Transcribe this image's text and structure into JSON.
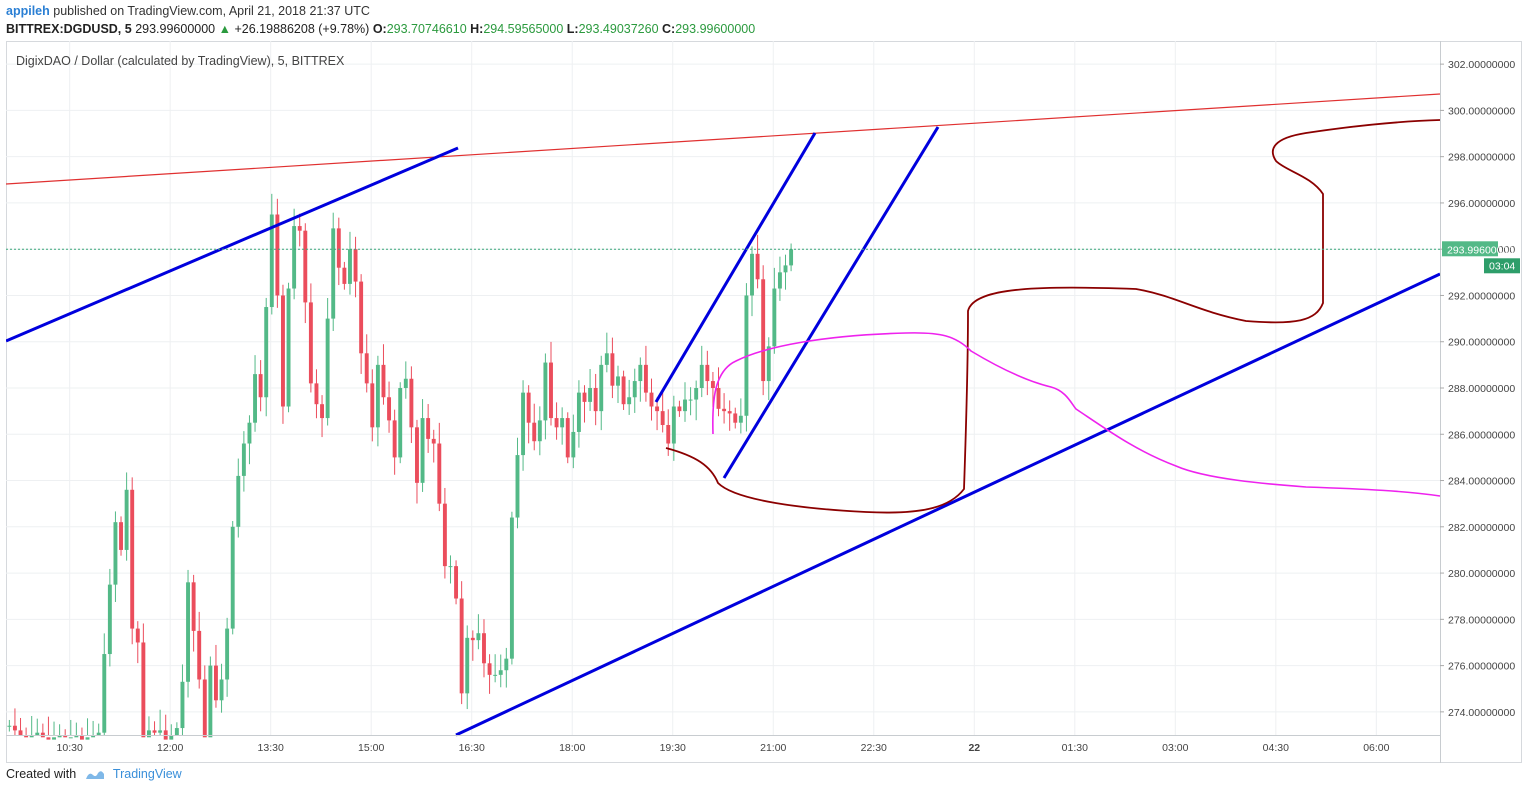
{
  "header": {
    "user": "appileh",
    "published_text": "published on TradingView.com, April 21, 2018 21:37 UTC",
    "symbol": "BITTREX:DGDUSD, 5",
    "last_price": "293.99600000",
    "change_arrow": "▲",
    "change": "+26.19886208 (+9.78%)",
    "o_label": "O:",
    "o_value": "293.70746610",
    "h_label": "H:",
    "h_value": "294.59565000",
    "l_label": "L:",
    "l_value": "293.49037260",
    "c_label": "C:",
    "c_value": "293.99600000"
  },
  "chart_title": "DigixDAO / Dollar (calculated by TradingView), 5, BITTREX",
  "price_badge": "293.99600000",
  "countdown_badge": "03:04",
  "footer": {
    "created_with": "Created with",
    "brand": "TradingView"
  },
  "colors": {
    "up": "#53b987",
    "down": "#eb4d5c",
    "trendline": "#0000dd",
    "resistance": "#e03030",
    "projection_dark": "#8b0000",
    "projection_magenta": "#ee22ee",
    "last_price_line": "#3aa77a",
    "badge_price": "#53b987",
    "badge_time": "#2e9e6a"
  },
  "chart_data": {
    "type": "candlestick",
    "title": "DigixDAO / Dollar (calculated by TradingView), 5, BITTREX",
    "ylim": [
      273,
      303
    ],
    "yticks": [
      "274.00000000",
      "276.00000000",
      "278.00000000",
      "280.00000000",
      "282.00000000",
      "284.00000000",
      "286.00000000",
      "288.00000000",
      "290.00000000",
      "292.00000000",
      "294.00000000",
      "296.00000000",
      "298.00000000",
      "300.00000000",
      "302.00000000"
    ],
    "ytick_values": [
      274,
      276,
      278,
      280,
      282,
      284,
      286,
      288,
      290,
      292,
      294,
      296,
      298,
      300,
      302
    ],
    "xticks": [
      "10:30",
      "12:00",
      "13:30",
      "15:00",
      "16:30",
      "18:00",
      "19:30",
      "21:00",
      "22:30",
      "22",
      "01:30",
      "03:00",
      "04:30",
      "06:00"
    ],
    "xtick_hours": [
      10.5,
      12,
      13.5,
      15,
      16.5,
      18,
      19.5,
      21,
      22.5,
      24,
      25.5,
      27,
      28.5,
      30
    ],
    "xlim_hours": [
      9.55,
      30.95
    ],
    "grid": true,
    "last_price": 293.996,
    "candles_start_hour": 9.6,
    "candle_step_hours": 0.08333,
    "closes": [
      273.4,
      273.2,
      273.0,
      272.9,
      273.0,
      273.1,
      272.9,
      272.8,
      272.9,
      273.0,
      272.9,
      272.9,
      273.0,
      272.8,
      272.9,
      273.0,
      273.1,
      276.5,
      279.5,
      282.2,
      281.0,
      283.6,
      277.6,
      277.0,
      272.9,
      273.2,
      273.1,
      273.2,
      272.8,
      273.0,
      273.3,
      275.3,
      279.6,
      277.5,
      275.4,
      272.9,
      276.0,
      274.5,
      275.4,
      277.6,
      282.0,
      284.2,
      285.6,
      286.5,
      288.6,
      287.6,
      291.5,
      295.5,
      292.0,
      287.2,
      292.3,
      295.0,
      294.8,
      291.7,
      288.2,
      287.3,
      286.7,
      291.0,
      294.9,
      293.2,
      292.5,
      294.0,
      292.6,
      289.5,
      288.2,
      286.3,
      289.0,
      287.6,
      286.6,
      285.0,
      288.0,
      288.4,
      286.3,
      283.9,
      286.7,
      285.8,
      285.6,
      283.0,
      280.3,
      280.3,
      278.9,
      274.8,
      277.2,
      277.1,
      277.4,
      276.1,
      275.6,
      275.6,
      275.8,
      276.3,
      282.4,
      285.1,
      287.8,
      286.5,
      285.7,
      286.6,
      289.1,
      286.7,
      286.3,
      286.7,
      285.0,
      286.1,
      287.8,
      287.4,
      288.0,
      287.0,
      289.0,
      289.5,
      288.1,
      288.5,
      287.3,
      287.6,
      288.3,
      289.0,
      287.8,
      287.2,
      287.0,
      286.4,
      285.6,
      287.2,
      287.0,
      287.5,
      287.5,
      288.0,
      289.0,
      288.3,
      288.0,
      287.1,
      287.0,
      286.9,
      286.5,
      286.8,
      292.0,
      293.8,
      292.7,
      288.3,
      289.8,
      292.3,
      293.0,
      293.3,
      293.996
    ]
  }
}
